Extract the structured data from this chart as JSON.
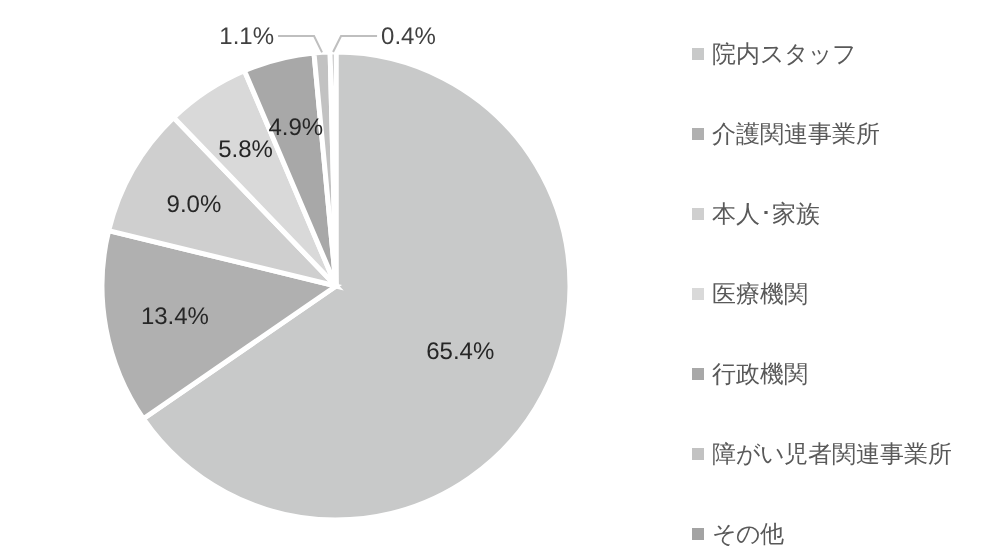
{
  "chart_data": {
    "type": "pie",
    "categories": [
      "院内スタッフ",
      "介護関連事業所",
      "本人･家族",
      "医療機関",
      "行政機関",
      "障がい児者関連事業所",
      "その他"
    ],
    "values": [
      65.4,
      13.4,
      9.0,
      5.8,
      4.9,
      1.1,
      0.4
    ],
    "colors": [
      "#c8c9c9",
      "#b0b0b0",
      "#cfcfcf",
      "#d9d9d9",
      "#a8a8a8",
      "#c2c2c2",
      "#a3a3a3"
    ],
    "value_labels": [
      "65.4%",
      "13.4%",
      "9.0%",
      "5.8%",
      "4.9%",
      "1.1%",
      "0.4%"
    ],
    "legend": "right"
  }
}
